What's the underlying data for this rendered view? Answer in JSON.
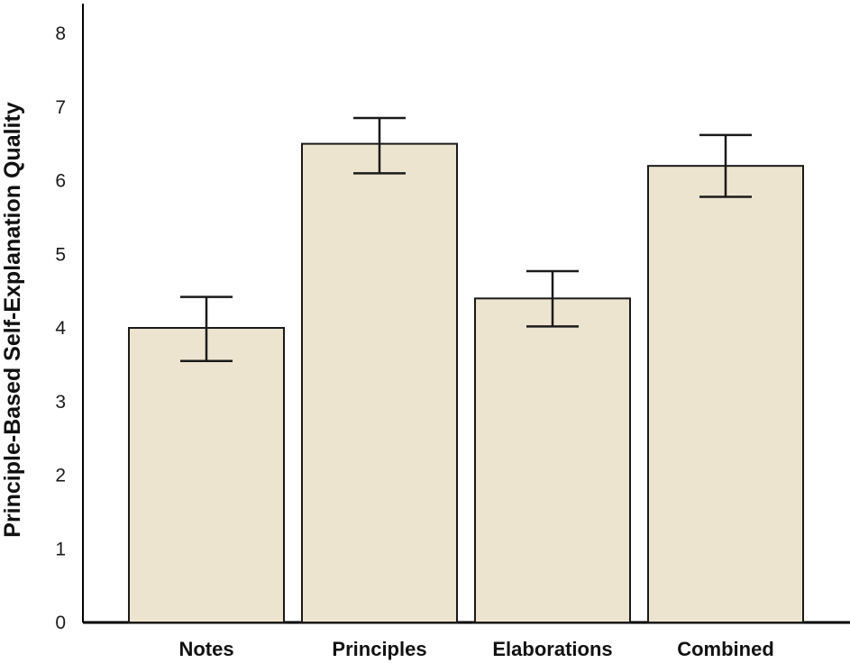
{
  "chart_data": {
    "type": "bar",
    "title": "",
    "xlabel": "",
    "ylabel": "Principle-Based Self-Explanation Quality",
    "ylim": [
      0,
      8
    ],
    "yticks": [
      0,
      1,
      2,
      3,
      4,
      5,
      6,
      7,
      8
    ],
    "grid": false,
    "categories": [
      "Notes",
      "Principles",
      "Elaborations",
      "Combined"
    ],
    "values": [
      4.0,
      6.5,
      4.4,
      6.2
    ],
    "error_low": [
      3.55,
      6.1,
      4.02,
      5.78
    ],
    "error_high": [
      4.42,
      6.85,
      4.77,
      6.62
    ],
    "colors": {
      "bar_fill": "#ede4cf",
      "bar_stroke": "#1a1a1a",
      "axis": "#000000"
    }
  }
}
